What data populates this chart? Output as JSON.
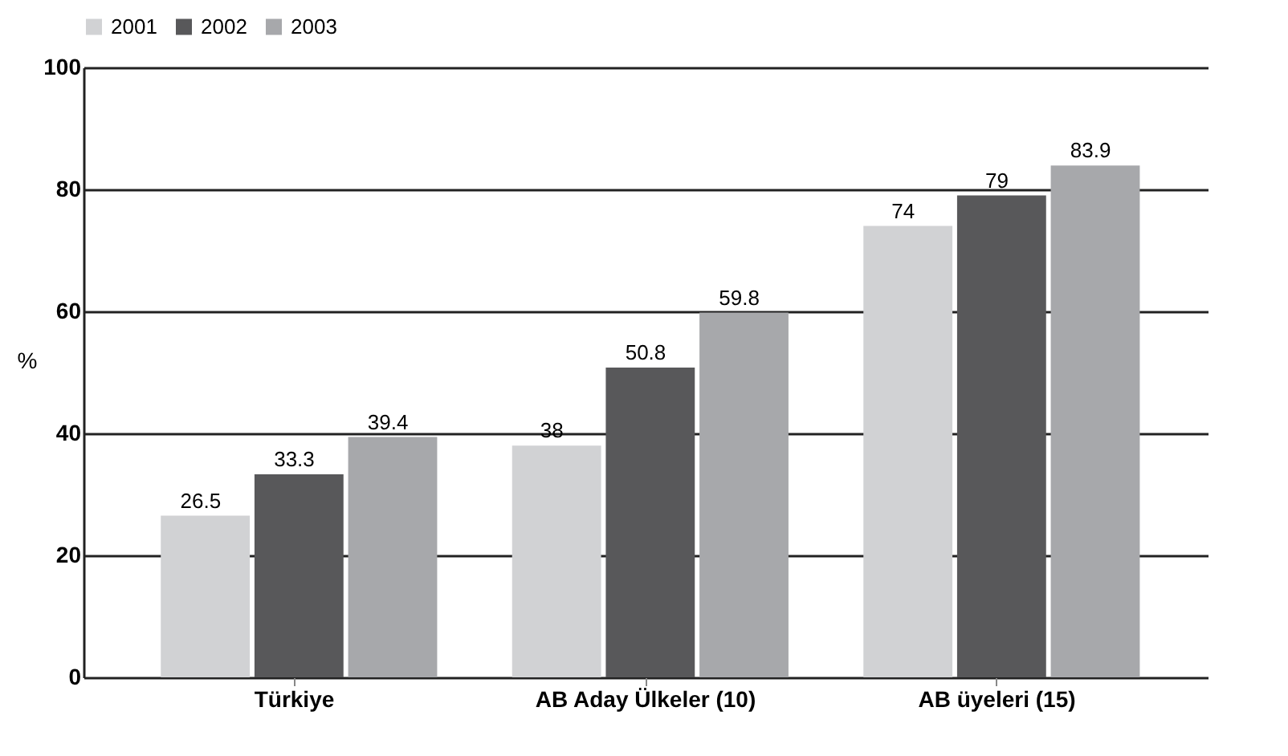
{
  "chart_data": {
    "type": "bar",
    "ylabel": "%",
    "categories": [
      "Türkiye",
      "AB Aday Ülkeler (10)",
      "AB üyeleri (15)"
    ],
    "series": [
      {
        "name": "2001",
        "color": "#d1d2d4",
        "values": [
          26.5,
          38,
          74
        ]
      },
      {
        "name": "2002",
        "color": "#58585a",
        "values": [
          33.3,
          50.8,
          79
        ]
      },
      {
        "name": "2003",
        "color": "#a7a8ab",
        "values": [
          39.4,
          59.8,
          83.9
        ]
      }
    ],
    "ylim": [
      0,
      100
    ],
    "yticks": [
      0,
      20,
      40,
      60,
      80,
      100
    ],
    "grid": "y",
    "legend": "top",
    "data_labels": true
  }
}
